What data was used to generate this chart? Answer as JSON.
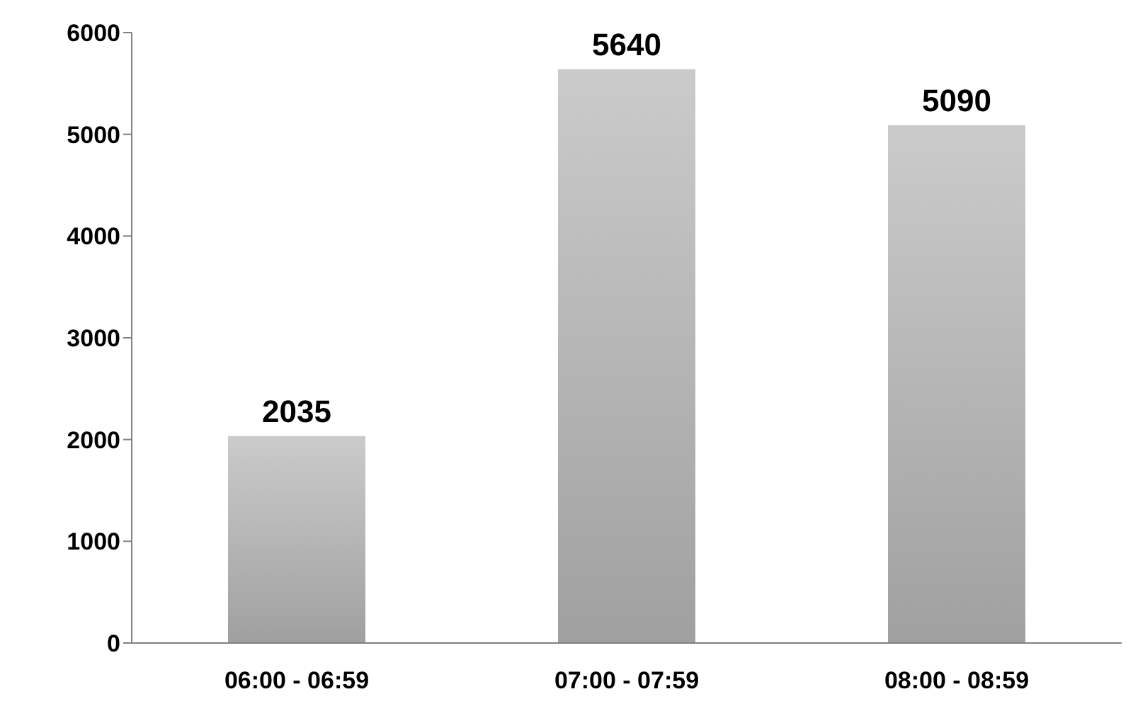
{
  "chart_data": {
    "type": "bar",
    "categories": [
      "06:00 - 06:59",
      "07:00 - 07:59",
      "08:00 - 08:59"
    ],
    "values": [
      2035,
      5640,
      5090
    ],
    "color": "#a0a0a0",
    "ylim": [
      0,
      6000
    ],
    "yticks": [
      0,
      1000,
      2000,
      3000,
      4000,
      5000,
      6000
    ],
    "grid": false,
    "data_labels": true
  }
}
